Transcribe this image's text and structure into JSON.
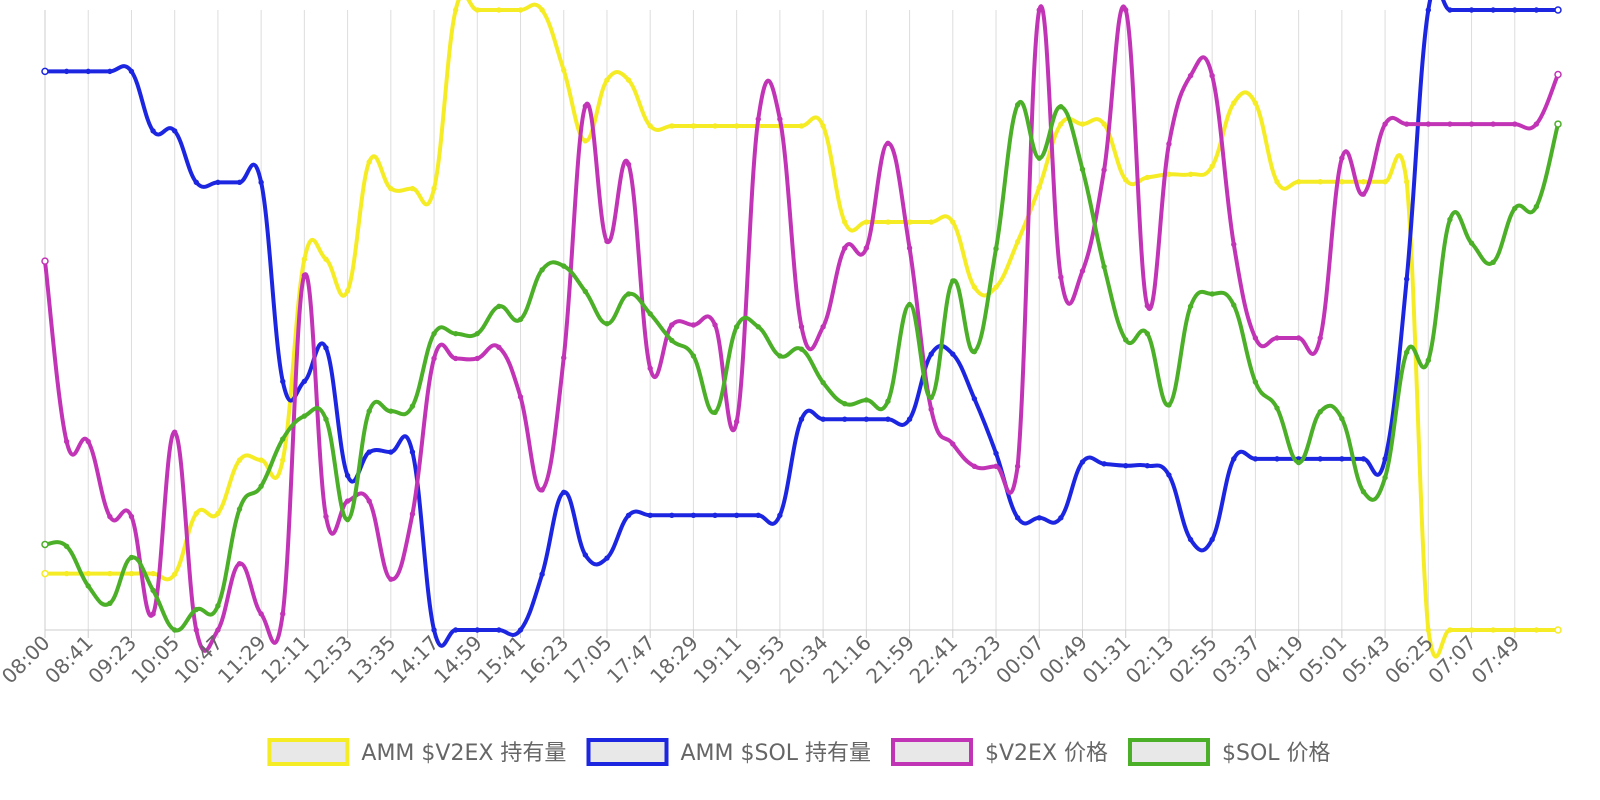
{
  "chart_data": {
    "type": "line",
    "title": "",
    "xlabel": "",
    "ylabel": "",
    "grid": true,
    "legend_position": "bottom",
    "x_tick_labels": [
      "08:00",
      "08:41",
      "09:23",
      "10:05",
      "10:47",
      "11:29",
      "12:11",
      "12:53",
      "13:35",
      "14:17",
      "14:59",
      "15:41",
      "16:23",
      "17:05",
      "17:47",
      "18:29",
      "19:11",
      "19:53",
      "20:34",
      "21:16",
      "21:59",
      "22:41",
      "23:23",
      "00:07",
      "00:49",
      "01:31",
      "02:13",
      "02:55",
      "03:37",
      "04:19",
      "05:01",
      "05:43",
      "06:25",
      "07:07",
      "07:49"
    ],
    "x_range": [
      0,
      70
    ],
    "ylim": [
      0,
      100
    ],
    "series": [
      {
        "name": "AMM $V2EX 持有量",
        "color": "#f5ec25",
        "values": [
          9.1,
          9.1,
          9.1,
          9.1,
          9.1,
          9.1,
          9.0,
          18.8,
          18.8,
          27.4,
          27.4,
          27.4,
          59.8,
          59.8,
          54.7,
          75.5,
          71.2,
          71.2,
          71.2,
          100,
          100,
          100,
          100,
          100,
          90.3,
          78.9,
          88.7,
          88.7,
          81.3,
          81.3,
          81.3,
          81.3,
          81.3,
          81.3,
          81.3,
          81.3,
          81.3,
          65.8,
          65.8,
          65.8,
          65.8,
          65.8,
          65.8,
          55.3,
          55.3,
          62.6,
          71.4,
          81.6,
          81.6,
          81.6,
          72.6,
          73.0,
          73.5,
          73.5,
          74.8,
          85.0,
          85.0,
          72.3,
          72.3,
          72.3,
          72.3,
          72.3,
          72.3,
          72.3,
          0,
          0,
          0,
          0,
          0,
          0,
          0
        ]
      },
      {
        "name": "AMM $SOL 持有量",
        "color": "#1c26e0",
        "values": [
          90.1,
          90.1,
          90.1,
          90.1,
          90.1,
          80.5,
          80.5,
          72.2,
          72.2,
          72.2,
          72.2,
          40.1,
          40.1,
          45.5,
          24.9,
          28.7,
          28.7,
          28.7,
          0,
          0,
          0,
          0,
          0,
          9.0,
          22.2,
          12.1,
          11.6,
          18.5,
          18.5,
          18.5,
          18.5,
          18.5,
          18.5,
          18.5,
          18.5,
          34.0,
          34.0,
          34.0,
          34.0,
          34.0,
          34.0,
          44.5,
          44.5,
          37.3,
          28.5,
          18.1,
          18.1,
          18.1,
          27.1,
          26.8,
          26.5,
          26.5,
          25.0,
          14.6,
          14.6,
          27.6,
          27.6,
          27.6,
          27.6,
          27.6,
          27.6,
          27.6,
          27.6,
          56.6,
          100,
          100,
          100,
          100,
          100,
          100,
          100
        ]
      },
      {
        "name": "$V2EX 价格",
        "color": "#c234b6",
        "values": [
          59.5,
          30.4,
          30.4,
          18.3,
          18.3,
          2.6,
          31.9,
          0,
          0,
          10.7,
          2.6,
          2.6,
          57.2,
          18.3,
          20.8,
          20.8,
          8.2,
          18.7,
          43.8,
          43.8,
          43.8,
          45.6,
          37.6,
          22.6,
          43.9,
          84.5,
          62.7,
          75.1,
          42.2,
          49.2,
          49.2,
          49.2,
          33.6,
          82.4,
          82.4,
          48.9,
          48.9,
          61.6,
          61.6,
          78.5,
          61.6,
          35.6,
          30.0,
          26.4,
          26.4,
          26.4,
          100,
          56.9,
          57.9,
          74.2,
          100,
          52.3,
          78.4,
          89.4,
          89.4,
          62.2,
          47.1,
          47.1,
          47.1,
          47.1,
          76.1,
          70.3,
          81.6,
          81.6,
          81.6,
          81.6,
          81.6,
          81.6,
          81.6,
          81.6,
          89.6
        ]
      },
      {
        "name": "$SOL 价格",
        "color": "#4caf28",
        "values": [
          13.8,
          13.5,
          7.1,
          4.3,
          11.7,
          6.4,
          0,
          3.3,
          3.9,
          19.5,
          23.2,
          30.8,
          34.5,
          34.0,
          17.8,
          35.3,
          35.3,
          36.1,
          47.8,
          47.8,
          47.8,
          52.2,
          50.1,
          58.1,
          58.7,
          54.6,
          49.4,
          54.2,
          51.0,
          46.7,
          44.2,
          35.1,
          48.9,
          48.9,
          44.2,
          45.3,
          39.9,
          36.5,
          37.1,
          36.9,
          52.5,
          37.5,
          56.3,
          44.9,
          61.5,
          84.7,
          76.1,
          84.4,
          74.3,
          58.6,
          46.8,
          47.8,
          36.3,
          52.2,
          54.2,
          52.4,
          40.0,
          35.8,
          27.0,
          35.2,
          34.1,
          22.3,
          24.6,
          44.8,
          43.5,
          66.2,
          62.4,
          59.3,
          68.0,
          68.3,
          81.6
        ]
      }
    ]
  }
}
